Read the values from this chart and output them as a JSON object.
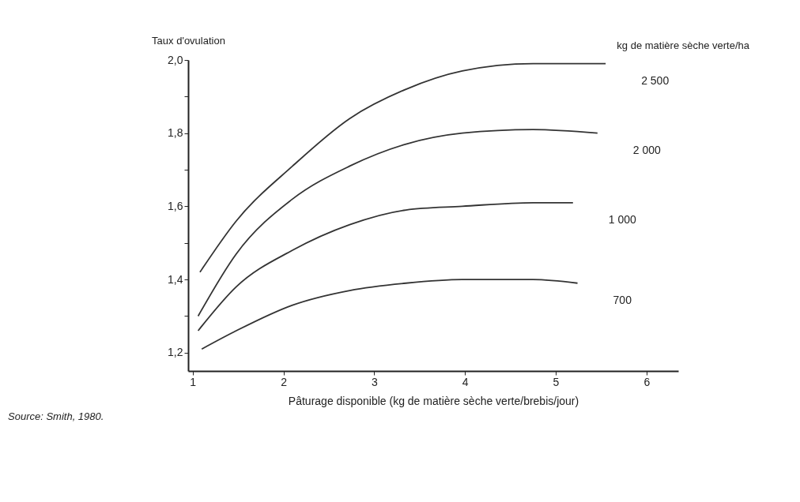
{
  "chart_data": {
    "type": "line",
    "xlabel": "Pâturage disponible (kg de matière sèche verte/brebis/jour)",
    "ylabel": "Taux d'ovulation",
    "legend_title": "kg de matière sèche verte/ha",
    "xlim": [
      0.95,
      6.35
    ],
    "ylim": [
      1.15,
      2.0
    ],
    "xticks": [
      1,
      2,
      3,
      4,
      5,
      6
    ],
    "yticks": [
      {
        "value": 1.2,
        "label": "1,2"
      },
      {
        "value": 1.3,
        "label": null
      },
      {
        "value": 1.4,
        "label": "1,4"
      },
      {
        "value": 1.5,
        "label": null
      },
      {
        "value": 1.6,
        "label": "1,6"
      },
      {
        "value": 1.7,
        "label": null
      },
      {
        "value": 1.8,
        "label": "1,8"
      },
      {
        "value": 1.9,
        "label": null
      },
      {
        "value": 2.0,
        "label": "2,0"
      }
    ],
    "grid": false,
    "legend": false,
    "marker": "none",
    "line_style": "solid",
    "series": [
      {
        "name": "2 500",
        "color": "#333333",
        "x": [
          1.08,
          1.48,
          2.1,
          2.73,
          3.35,
          3.97,
          4.75,
          5.55
        ],
        "values": [
          1.42,
          1.56,
          1.71,
          1.84,
          1.92,
          1.97,
          1.99,
          1.99
        ]
      },
      {
        "name": "2 000",
        "color": "#333333",
        "x": [
          1.06,
          1.48,
          2.1,
          2.73,
          3.35,
          3.97,
          4.75,
          5.46
        ],
        "values": [
          1.3,
          1.47,
          1.62,
          1.71,
          1.77,
          1.8,
          1.81,
          1.8
        ]
      },
      {
        "name": "1 000",
        "color": "#333333",
        "x": [
          1.06,
          1.48,
          2.1,
          2.73,
          3.35,
          3.97,
          4.75,
          5.19
        ],
        "values": [
          1.26,
          1.38,
          1.48,
          1.55,
          1.59,
          1.6,
          1.61,
          1.61
        ]
      },
      {
        "name": "700",
        "color": "#333333",
        "x": [
          1.1,
          1.48,
          2.1,
          2.73,
          3.35,
          3.97,
          4.75,
          5.24
        ],
        "values": [
          1.21,
          1.26,
          1.33,
          1.37,
          1.39,
          1.4,
          1.4,
          1.39
        ]
      }
    ],
    "annotations": [
      "Source: Smith, 1980."
    ]
  }
}
